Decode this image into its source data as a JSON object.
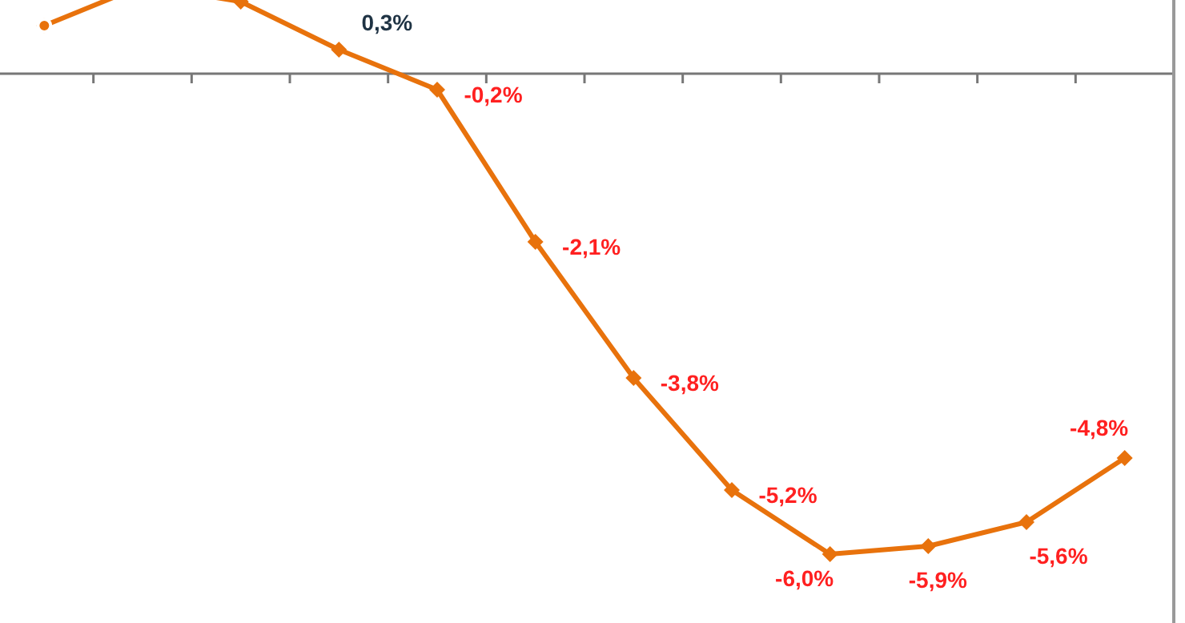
{
  "chart_data": {
    "type": "line",
    "categories": [
      null,
      null,
      null,
      null,
      null,
      null,
      null,
      null,
      null,
      null,
      null,
      null
    ],
    "series": [
      {
        "color": "#e8720c",
        "values": [
          0.6,
          1.1,
          0.9,
          0.3,
          -0.2,
          -2.1,
          -3.8,
          -5.2,
          -6.0,
          -5.9,
          -5.6,
          -4.8
        ],
        "value_labels": [
          null,
          null,
          null,
          "0,3%",
          "-0,2%",
          "-2,1%",
          "-3,8%",
          "-5,2%",
          "-6,0%",
          "-5,9%",
          "-5,6%",
          "-4,8%"
        ]
      }
    ],
    "marker": "diamond",
    "tick_labels": false,
    "grid": false,
    "legend": false
  }
}
